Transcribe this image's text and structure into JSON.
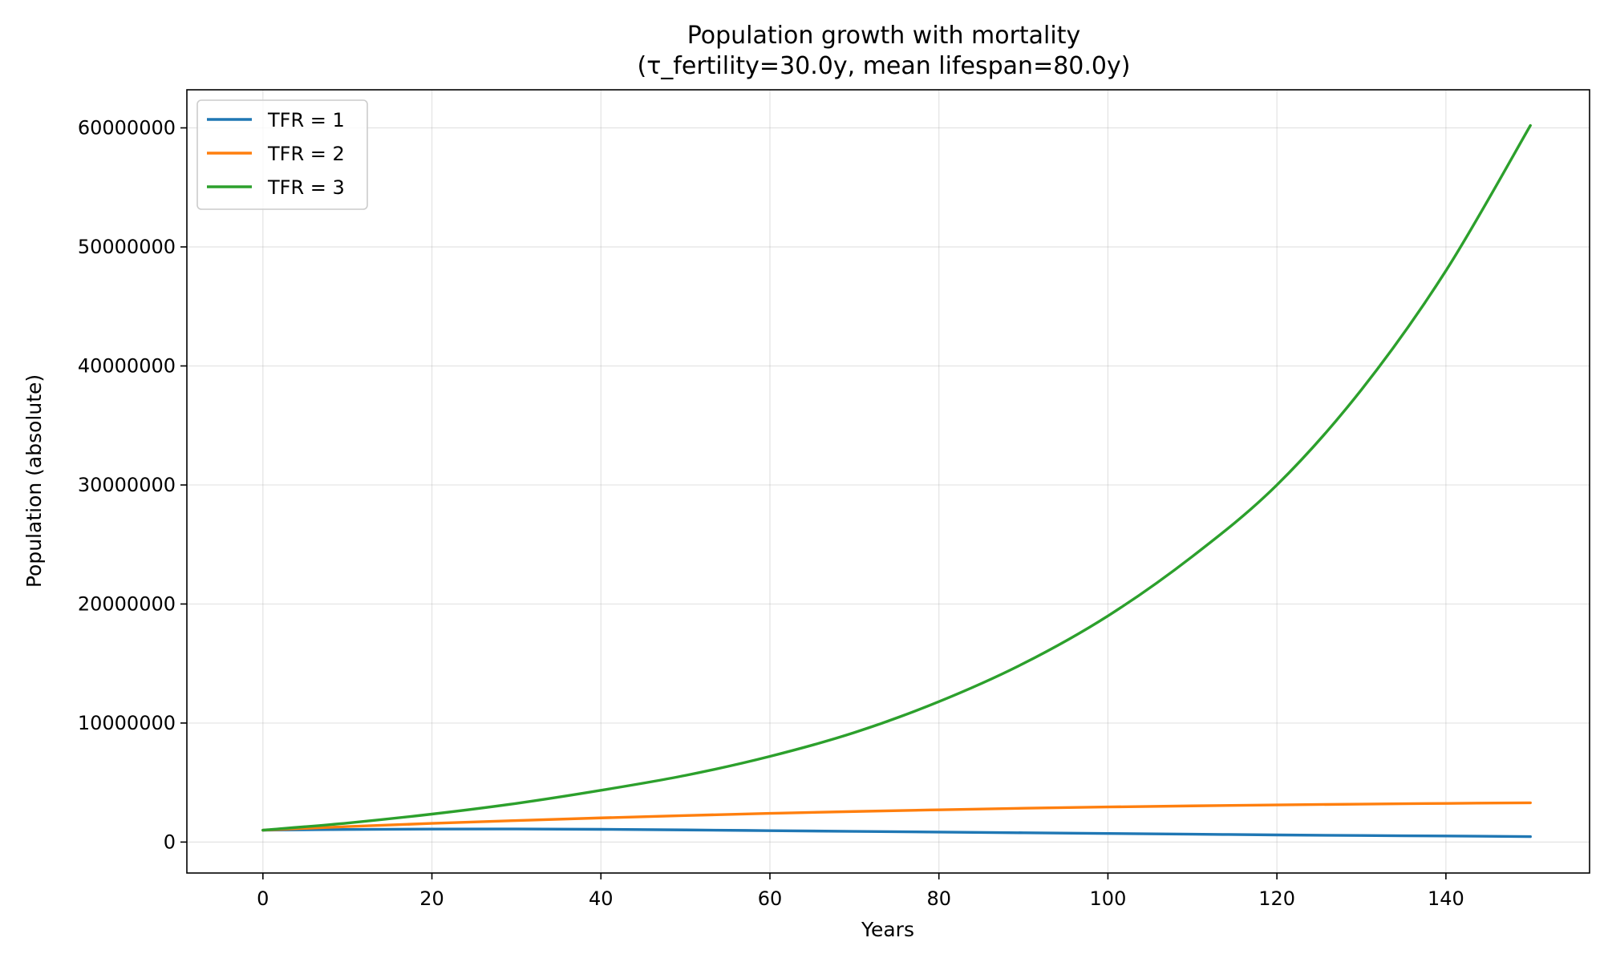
{
  "chart_data": {
    "type": "line",
    "title": "Population growth with mortality",
    "subtitle": "(τ_fertility=30.0y, mean lifespan=80.0y)",
    "xlabel": "Years",
    "ylabel": "Population (absolute)",
    "xlim": [
      -9,
      157
    ],
    "ylim": [
      -2600000,
      63200000
    ],
    "xticks": [
      0,
      20,
      40,
      60,
      80,
      100,
      120,
      140
    ],
    "xtick_labels": [
      "0",
      "20",
      "40",
      "60",
      "80",
      "100",
      "120",
      "140"
    ],
    "yticks": [
      0,
      10000000,
      20000000,
      30000000,
      40000000,
      50000000,
      60000000
    ],
    "ytick_labels": [
      "0",
      "10000000",
      "20000000",
      "30000000",
      "40000000",
      "50000000",
      "60000000"
    ],
    "grid": true,
    "legend_position": "top-left",
    "x": [
      0,
      10,
      20,
      30,
      40,
      50,
      60,
      70,
      80,
      90,
      100,
      110,
      120,
      130,
      140,
      150
    ],
    "series": [
      {
        "name": "TFR = 1",
        "color": "#1f77b4",
        "values": [
          1000000,
          1060000,
          1090000,
          1100000,
          1070000,
          1020000,
          960000,
          900000,
          840000,
          780000,
          720000,
          660000,
          600000,
          550000,
          510000,
          460000
        ]
      },
      {
        "name": "TFR = 2",
        "color": "#ff7f0e",
        "values": [
          1000000,
          1300000,
          1570000,
          1810000,
          2030000,
          2230000,
          2410000,
          2570000,
          2710000,
          2840000,
          2950000,
          3040000,
          3120000,
          3190000,
          3250000,
          3300000
        ]
      },
      {
        "name": "TFR = 3",
        "color": "#2ca02c",
        "values": [
          1000000,
          1600000,
          2350000,
          3250000,
          4350000,
          5600000,
          7200000,
          9200000,
          11800000,
          15000000,
          19000000,
          24000000,
          30000000,
          38000000,
          48000000,
          60200000
        ]
      }
    ]
  }
}
